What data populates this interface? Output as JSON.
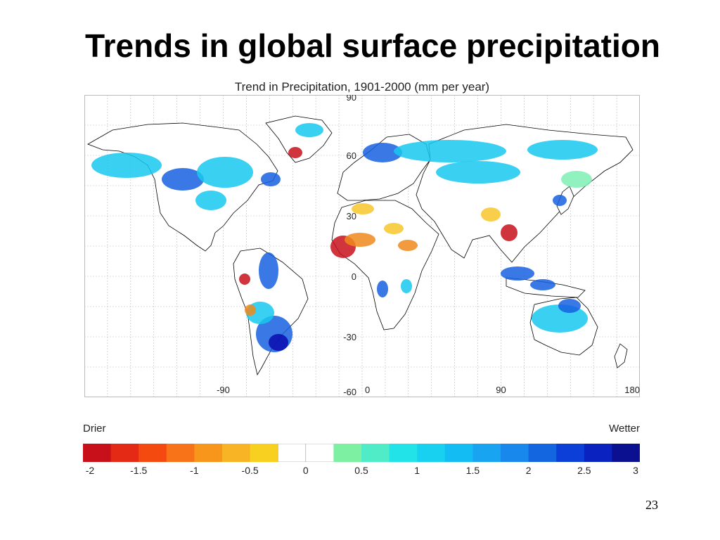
{
  "slide": {
    "title": "Trends in global surface precipitation",
    "page_number": "23"
  },
  "map": {
    "title": "Trend in Precipitation, 1901-2000 (mm per year)",
    "lat_labels": [
      "90",
      "60",
      "30",
      "0",
      "-30",
      "-60"
    ],
    "lon_labels": [
      "-90",
      "0",
      "90",
      "180"
    ],
    "lat_range": [
      -60,
      90
    ],
    "lon_range": [
      -180,
      180
    ],
    "gridlines": true,
    "land_outline_color": "#000000",
    "pattern_colors": {
      "drier_strong": "#c8101a",
      "drier_moderate": "#f08a1c",
      "drier_weak": "#f7c62a",
      "wetter_weak": "#7ef0b4",
      "wetter_moderate": "#18c8ee",
      "wetter_strong": "#1660e0",
      "wetter_very_strong": "#0a0ab0"
    }
  },
  "legend": {
    "drier_label": "Drier",
    "wetter_label": "Wetter",
    "colors": [
      "#c8101a",
      "#e42a14",
      "#f44a10",
      "#f87218",
      "#f8961c",
      "#f8b424",
      "#f8d020",
      "#ffffff",
      "#ffffff",
      "#7ef0a2",
      "#50ecc8",
      "#22e4e8",
      "#18d0f0",
      "#14bcf4",
      "#18a4f0",
      "#1888ec",
      "#1466e0",
      "#0c3ed8",
      "#0a22c0",
      "#0a1090"
    ],
    "tick_labels": [
      "-2",
      "-1.5",
      "-1",
      "-0.5",
      "0",
      "0.5",
      "1",
      "1.5",
      "2",
      "2.5",
      "3"
    ]
  }
}
